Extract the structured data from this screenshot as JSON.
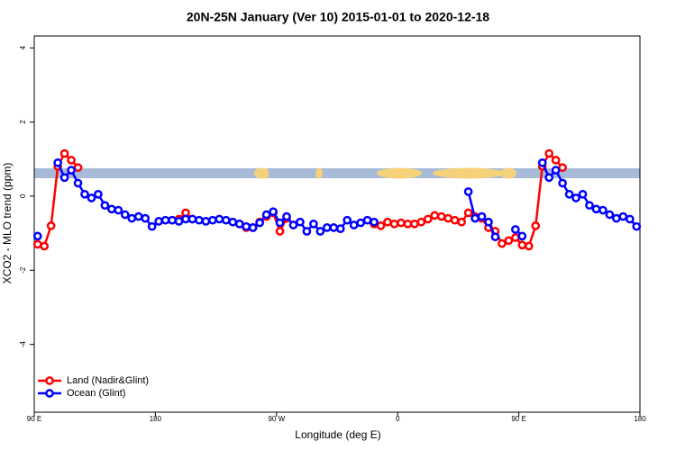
{
  "chart_data": {
    "type": "line",
    "title": "20N-25N January (Ver 10)   2015-01-01 to 2020-12-18",
    "x_label": "Longitude (deg E)",
    "y_label": "XCO2 - MLO trend (ppm)",
    "x": [
      92.5,
      97.5,
      102.5,
      107.5,
      112.5,
      117.5,
      122.5,
      127.5,
      132.5,
      137.5,
      142.5,
      147.5,
      152.5,
      157.5,
      162.5,
      167.5,
      172.5,
      177.5,
      182.5,
      187.5,
      192.5,
      197.5,
      202.5,
      207.5,
      212.5,
      217.5,
      222.5,
      227.5,
      232.5,
      237.5,
      242.5,
      247.5,
      252.5,
      257.5,
      262.5,
      267.5,
      272.5,
      277.5,
      282.5,
      287.5,
      292.5,
      297.5,
      302.5,
      307.5,
      312.5,
      317.5,
      322.5,
      327.5,
      332.5,
      337.5,
      342.5,
      347.5,
      352.5,
      357.5,
      362.5,
      367.5,
      372.5,
      377.5,
      382.5,
      387.5,
      392.5,
      397.5,
      402.5,
      407.5,
      412.5,
      417.5,
      422.5,
      427.5,
      432.5,
      437.5,
      442.5,
      447.5,
      452.5,
      457.5,
      462.5,
      467.5,
      472.5,
      477.5,
      482.5,
      487.5,
      492.5,
      497.5,
      502.5,
      507.5,
      512.5,
      517.5,
      522.5,
      527.5,
      532.5,
      537.5
    ],
    "series": [
      {
        "name": "Land (Nadir&Glint)",
        "color": "#ff0000",
        "values": [
          -1.3,
          -1.35,
          -0.8,
          0.8,
          1.15,
          0.97,
          0.77,
          null,
          null,
          null,
          null,
          null,
          null,
          null,
          null,
          null,
          null,
          null,
          null,
          null,
          -0.65,
          -0.62,
          -0.45,
          -0.62,
          null,
          null,
          null,
          null,
          null,
          null,
          -0.75,
          -0.85,
          -0.85,
          -0.7,
          -0.55,
          -0.45,
          -0.95,
          -0.6,
          null,
          null,
          null,
          null,
          null,
          null,
          null,
          null,
          null,
          null,
          null,
          null,
          -0.75,
          -0.8,
          -0.7,
          -0.75,
          -0.72,
          -0.75,
          -0.75,
          -0.7,
          -0.62,
          -0.52,
          -0.55,
          -0.6,
          -0.65,
          -0.7,
          -0.45,
          -0.55,
          -0.6,
          -0.85,
          -0.95,
          -1.28,
          -1.2,
          -1.12,
          -1.32,
          -1.35,
          -0.8,
          0.8,
          1.15,
          0.97,
          0.77,
          null,
          null,
          null,
          null,
          null,
          null,
          null,
          null,
          null,
          null,
          null
        ]
      },
      {
        "name": "Ocean (Glint)",
        "color": "#0000ff",
        "values": [
          -1.08,
          null,
          null,
          0.9,
          0.5,
          0.7,
          0.35,
          0.05,
          -0.05,
          0.05,
          -0.25,
          -0.35,
          -0.38,
          -0.5,
          -0.6,
          -0.55,
          -0.6,
          -0.82,
          -0.68,
          -0.65,
          -0.65,
          -0.68,
          -0.62,
          -0.62,
          -0.65,
          -0.68,
          -0.65,
          -0.62,
          -0.65,
          -0.7,
          -0.75,
          -0.82,
          -0.85,
          -0.72,
          -0.5,
          -0.42,
          -0.72,
          -0.55,
          -0.78,
          -0.7,
          -0.95,
          -0.75,
          -0.95,
          -0.85,
          -0.85,
          -0.88,
          -0.65,
          -0.78,
          -0.72,
          -0.65,
          -0.7,
          null,
          null,
          null,
          null,
          null,
          null,
          null,
          null,
          null,
          null,
          null,
          null,
          null,
          0.12,
          -0.6,
          -0.55,
          -0.7,
          -1.1,
          null,
          null,
          -0.9,
          -1.08,
          null,
          null,
          0.9,
          0.5,
          0.7,
          0.35,
          0.05,
          -0.05,
          0.05,
          -0.25,
          -0.35,
          -0.38,
          -0.5,
          -0.6,
          -0.55,
          -0.62,
          -0.82
        ]
      }
    ],
    "xlim": [
      90,
      540
    ],
    "xticks": [
      {
        "value": 90,
        "label": "90 E"
      },
      180,
      {
        "value": 270,
        "label": "90 W"
      },
      {
        "value": 360,
        "label": "0"
      },
      {
        "value": 450,
        "label": "90 E"
      },
      {
        "value": 540,
        "label": "180"
      }
    ],
    "ylim": [
      -5.83,
      4.32
    ],
    "yticks": [
      -4,
      -2,
      0,
      2,
      4
    ],
    "legend": "bottom-left"
  }
}
